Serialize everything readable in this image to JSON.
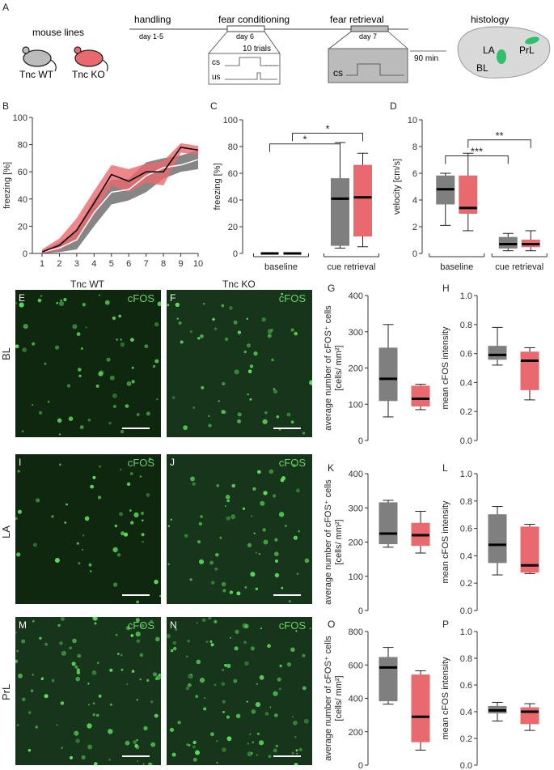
{
  "panels": {
    "A": "A",
    "B": "B",
    "C": "C",
    "D": "D",
    "E": "E",
    "F": "F",
    "G": "G",
    "H": "H",
    "I": "I",
    "J": "J",
    "K": "K",
    "L": "L",
    "M": "M",
    "N": "N",
    "O": "O",
    "P": "P"
  },
  "schematic": {
    "mouse_lines": "mouse lines",
    "wt": "Tnc WT",
    "ko": "Tnc KO",
    "handling": "handling",
    "handling_days": "day 1-5",
    "fear_conditioning": "fear conditioning",
    "fc_day": "day 6",
    "fear_retrieval": "fear retrieval",
    "fr_day": "day 7",
    "trials": "10 trials",
    "cs": "cs",
    "us": "us",
    "interval": "90 min",
    "histology": "histology",
    "la": "LA",
    "bl": "BL",
    "prl": "PrL"
  },
  "micro_labels": {
    "wt": "Tnc WT",
    "ko": "Tnc KO",
    "cfos": "cFOS",
    "row_bl": "BL",
    "row_la": "LA",
    "row_prl": "PrL"
  },
  "colors": {
    "wt": "#7f7f7f",
    "ko": "#e8696e",
    "micro_bg": "#0a1a0a",
    "cell": "#5fe05f"
  },
  "chart_data": [
    {
      "id": "B",
      "type": "line",
      "ylabel": "freezing [%]",
      "ylim": [
        0,
        100
      ],
      "x": [
        1,
        2,
        3,
        4,
        5,
        6,
        7,
        8,
        9,
        10
      ],
      "yticks": [
        "0",
        "20",
        "40",
        "60",
        "80",
        "100"
      ],
      "xticks": [
        "1",
        "2",
        "3",
        "4",
        "5",
        "6",
        "7",
        "8",
        "9",
        "10"
      ],
      "series": [
        {
          "values": [
            1,
            4,
            10,
            30,
            45,
            47,
            57,
            63,
            65,
            69
          ],
          "lower": [
            0,
            1,
            3,
            20,
            36,
            39,
            45,
            55,
            60,
            62
          ],
          "upper": [
            2,
            8,
            18,
            40,
            54,
            55,
            67,
            70,
            72,
            76
          ]
        },
        {
          "values": [
            1,
            6,
            17,
            37,
            58,
            53,
            60,
            60,
            78,
            76
          ],
          "lower": [
            0,
            2,
            10,
            28,
            50,
            45,
            52,
            50,
            74,
            73
          ],
          "upper": [
            3,
            11,
            26,
            46,
            65,
            62,
            66,
            68,
            81,
            79
          ]
        }
      ]
    },
    {
      "id": "C",
      "type": "box",
      "ylabel": "freezing [%]",
      "ylim": [
        0,
        100
      ],
      "yticks": [
        "0",
        "20",
        "40",
        "60",
        "80",
        "100"
      ],
      "categories": [
        "baseline",
        "cue retrieval"
      ],
      "boxes": [
        {
          "group": 0,
          "series": 0,
          "min": 0,
          "q1": 0,
          "median": 0,
          "q3": 0,
          "max": 0
        },
        {
          "group": 0,
          "series": 1,
          "min": 0,
          "q1": 0,
          "median": 0,
          "q3": 0,
          "max": 0
        },
        {
          "group": 1,
          "series": 0,
          "min": 4,
          "q1": 6,
          "median": 41,
          "q3": 56,
          "max": 83
        },
        {
          "group": 1,
          "series": 1,
          "min": 5,
          "q1": 13,
          "median": 42,
          "q3": 66,
          "max": 75
        }
      ],
      "significance": [
        "*",
        "*"
      ]
    },
    {
      "id": "D",
      "type": "box",
      "ylabel": "velocity [cm/s]",
      "ylim": [
        0,
        10
      ],
      "yticks": [
        "0",
        "2",
        "4",
        "6",
        "8",
        "10"
      ],
      "categories": [
        "baseline",
        "cue retrieval"
      ],
      "boxes": [
        {
          "group": 0,
          "series": 0,
          "min": 2.1,
          "q1": 3.7,
          "median": 4.8,
          "q3": 5.8,
          "max": 6.0
        },
        {
          "group": 0,
          "series": 1,
          "min": 1.7,
          "q1": 3.0,
          "median": 3.4,
          "q3": 5.8,
          "max": 7.5
        },
        {
          "group": 1,
          "series": 0,
          "min": 0.2,
          "q1": 0.4,
          "median": 0.7,
          "q3": 1.2,
          "max": 1.5
        },
        {
          "group": 1,
          "series": 1,
          "min": 0.2,
          "q1": 0.5,
          "median": 0.7,
          "q3": 1.0,
          "max": 1.7
        }
      ],
      "significance": [
        "***",
        "**"
      ]
    },
    {
      "id": "G",
      "type": "box",
      "ylabel": "average number of cFOS⁺ cells",
      "ylabel2": "[cells/ mm²]",
      "ylim": [
        0,
        400
      ],
      "yticks": [
        "0",
        "100",
        "200",
        "300",
        "400"
      ],
      "boxes": [
        {
          "series": 0,
          "min": 65,
          "q1": 110,
          "median": 170,
          "q3": 255,
          "max": 320
        },
        {
          "series": 1,
          "min": 85,
          "q1": 95,
          "median": 115,
          "q3": 150,
          "max": 155
        }
      ]
    },
    {
      "id": "H",
      "type": "box",
      "ylabel": "mean cFOS intensity",
      "ylim": [
        0,
        1.0
      ],
      "yticks": [
        "0.0",
        "0.2",
        "0.4",
        "0.6",
        "0.8",
        "1.0"
      ],
      "boxes": [
        {
          "series": 0,
          "min": 0.52,
          "q1": 0.56,
          "median": 0.59,
          "q3": 0.65,
          "max": 0.78
        },
        {
          "series": 1,
          "min": 0.28,
          "q1": 0.35,
          "median": 0.55,
          "q3": 0.61,
          "max": 0.64
        }
      ]
    },
    {
      "id": "K",
      "type": "box",
      "ylabel": "average number of cFOS⁺ cells",
      "ylabel2": "[cells/ mm²]",
      "ylim": [
        0,
        400
      ],
      "yticks": [
        "0",
        "100",
        "200",
        "300",
        "400"
      ],
      "boxes": [
        {
          "series": 0,
          "min": 185,
          "q1": 195,
          "median": 225,
          "q3": 315,
          "max": 322
        },
        {
          "series": 1,
          "min": 168,
          "q1": 190,
          "median": 220,
          "q3": 255,
          "max": 290
        }
      ]
    },
    {
      "id": "L",
      "type": "box",
      "ylabel": "mean cFOS intensity",
      "ylim": [
        0,
        1.0
      ],
      "yticks": [
        "0.0",
        "0.2",
        "0.4",
        "0.6",
        "0.8",
        "1.0"
      ],
      "boxes": [
        {
          "series": 0,
          "min": 0.26,
          "q1": 0.35,
          "median": 0.48,
          "q3": 0.7,
          "max": 0.76
        },
        {
          "series": 1,
          "min": 0.27,
          "q1": 0.28,
          "median": 0.33,
          "q3": 0.61,
          "max": 0.63
        }
      ]
    },
    {
      "id": "O",
      "type": "box",
      "ylabel": "average number of cFOS⁺ cells",
      "ylabel2": "[cells/ mm²]",
      "ylim": [
        0,
        800
      ],
      "yticks": [
        "0",
        "200",
        "400",
        "600",
        "800"
      ],
      "boxes": [
        {
          "series": 0,
          "min": 365,
          "q1": 385,
          "median": 585,
          "q3": 645,
          "max": 705
        },
        {
          "series": 1,
          "min": 90,
          "q1": 140,
          "median": 290,
          "q3": 540,
          "max": 565
        }
      ]
    },
    {
      "id": "P",
      "type": "box",
      "ylabel": "mean cFOS intensity",
      "ylim": [
        0,
        1.0
      ],
      "yticks": [
        "0.0",
        "0.2",
        "0.4",
        "0.6",
        "0.8",
        "1.0"
      ],
      "boxes": [
        {
          "series": 0,
          "min": 0.33,
          "q1": 0.39,
          "median": 0.41,
          "q3": 0.44,
          "max": 0.47
        },
        {
          "series": 1,
          "min": 0.26,
          "q1": 0.31,
          "median": 0.4,
          "q3": 0.43,
          "max": 0.46
        }
      ]
    }
  ]
}
